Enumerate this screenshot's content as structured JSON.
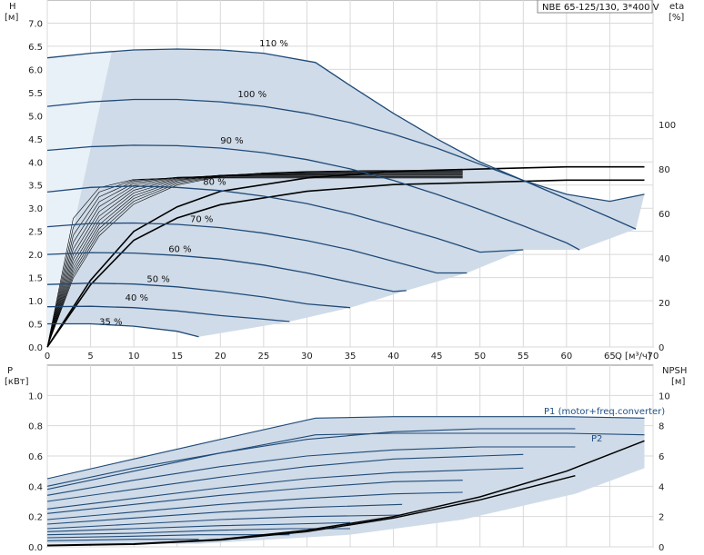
{
  "chart_data": [
    {
      "type": "line",
      "panel": "head",
      "title": "NBE 65-125/130, 3*400 V",
      "ylabel": "H",
      "yunit": "[м]",
      "y2label": "eta",
      "y2unit": "[%]",
      "xlabel": "Q [м³/ч]",
      "xlim": [
        0,
        70
      ],
      "ylim": [
        0,
        7.5
      ],
      "y2lim": [
        0,
        156
      ],
      "xticks": [
        "0",
        "5",
        "10",
        "15",
        "20",
        "25",
        "30",
        "35",
        "40",
        "45",
        "50",
        "55",
        "60",
        "65",
        "70"
      ],
      "yticks": [
        "0.0",
        "0.5",
        "1.0",
        "1.5",
        "2.0",
        "2.5",
        "3.0",
        "3.5",
        "4.0",
        "4.5",
        "5.0",
        "5.5",
        "6.0",
        "6.5",
        "7.0"
      ],
      "y2ticks": [
        "0",
        "20",
        "40",
        "60",
        "80",
        "100"
      ],
      "grid": true,
      "series": [
        {
          "name": "110 %",
          "label_at": [
            24.5,
            6.5
          ],
          "x": [
            0,
            5,
            10,
            15,
            20,
            25,
            31,
            35,
            40,
            45,
            50,
            55,
            60,
            65,
            69
          ],
          "y": [
            6.25,
            6.35,
            6.42,
            6.44,
            6.42,
            6.35,
            6.15,
            5.65,
            5.05,
            4.5,
            4.0,
            3.6,
            3.3,
            3.15,
            3.3
          ]
        },
        {
          "name": "100 %",
          "label_at": [
            22,
            5.4
          ],
          "x": [
            0,
            5,
            10,
            15,
            20,
            25,
            30,
            35,
            40,
            45,
            50,
            55,
            60,
            65,
            68
          ],
          "y": [
            5.2,
            5.3,
            5.35,
            5.35,
            5.3,
            5.2,
            5.05,
            4.85,
            4.6,
            4.3,
            3.95,
            3.6,
            3.2,
            2.8,
            2.55
          ]
        },
        {
          "name": "90 %",
          "label_at": [
            20,
            4.4
          ],
          "x": [
            0,
            5,
            10,
            15,
            20,
            25,
            30,
            35,
            40,
            45,
            50,
            55,
            60,
            61.5
          ],
          "y": [
            4.25,
            4.33,
            4.36,
            4.35,
            4.3,
            4.2,
            4.05,
            3.85,
            3.6,
            3.3,
            2.97,
            2.62,
            2.25,
            2.1
          ]
        },
        {
          "name": "80 %",
          "label_at": [
            18,
            3.5
          ],
          "x": [
            0,
            5,
            10,
            15,
            20,
            25,
            30,
            35,
            40,
            45,
            50,
            55
          ],
          "y": [
            3.35,
            3.45,
            3.48,
            3.45,
            3.38,
            3.26,
            3.1,
            2.88,
            2.62,
            2.35,
            2.05,
            2.1
          ]
        },
        {
          "name": "70 %",
          "label_at": [
            16.5,
            2.7
          ],
          "x": [
            0,
            5,
            10,
            15,
            20,
            25,
            30,
            35,
            40,
            45,
            48.5
          ],
          "y": [
            2.6,
            2.67,
            2.68,
            2.65,
            2.58,
            2.46,
            2.3,
            2.1,
            1.85,
            1.6,
            1.6
          ]
        },
        {
          "name": "60 %",
          "label_at": [
            14,
            2.05
          ],
          "x": [
            0,
            5,
            10,
            15,
            20,
            25,
            30,
            35,
            40,
            41.5
          ],
          "y": [
            2.0,
            2.04,
            2.03,
            1.98,
            1.9,
            1.77,
            1.6,
            1.4,
            1.2,
            1.22
          ]
        },
        {
          "name": "50 %",
          "label_at": [
            11.5,
            1.4
          ],
          "x": [
            0,
            5,
            10,
            15,
            20,
            25,
            30,
            35
          ],
          "y": [
            1.35,
            1.38,
            1.36,
            1.3,
            1.2,
            1.08,
            0.93,
            0.85
          ]
        },
        {
          "name": "40 %",
          "label_at": [
            9,
            1.0
          ],
          "x": [
            0,
            5,
            10,
            15,
            20,
            25,
            28
          ],
          "y": [
            0.87,
            0.88,
            0.85,
            0.78,
            0.68,
            0.6,
            0.55
          ]
        },
        {
          "name": "35 %",
          "label_at": [
            6,
            0.48
          ],
          "x": [
            0,
            5,
            10,
            15,
            17.5
          ],
          "y": [
            0.5,
            0.5,
            0.45,
            0.34,
            0.22
          ]
        }
      ],
      "curve_labels": [
        "110 %",
        "100 %",
        "90 %",
        "80 %",
        "70 %",
        "60 %",
        "50 %",
        "40 %",
        "35 %"
      ],
      "efficiency_series": [
        {
          "x": [
            0,
            5,
            10,
            15,
            20,
            30,
            40,
            50,
            60,
            69
          ],
          "y": [
            0,
            30,
            52,
            63,
            70,
            76,
            79,
            80,
            81,
            81
          ]
        },
        {
          "x": [
            0,
            5,
            10,
            15,
            20,
            30,
            40,
            50,
            60,
            69
          ],
          "y": [
            0,
            28,
            48,
            58,
            64,
            70,
            73,
            74,
            75,
            75
          ]
        }
      ]
    },
    {
      "type": "line",
      "panel": "power",
      "ylabel": "P",
      "yunit": "[кВт]",
      "y2label": "NPSH",
      "y2unit": "[м]",
      "xlim": [
        0,
        70
      ],
      "ylim": [
        0,
        1.2
      ],
      "y2lim": [
        0,
        12
      ],
      "yticks": [
        "0.0",
        "0.2",
        "0.4",
        "0.6",
        "0.8",
        "1.0"
      ],
      "y2ticks": [
        "0",
        "2",
        "4",
        "6",
        "8",
        "10"
      ],
      "legend": [
        "P1 (motor+freq.converter)",
        "P2"
      ],
      "series": [
        {
          "name": "P1 (motor+freq.converter)",
          "x": [
            0,
            10,
            20,
            31,
            40,
            50,
            60,
            69
          ],
          "y": [
            0.45,
            0.58,
            0.71,
            0.85,
            0.86,
            0.86,
            0.86,
            0.85
          ]
        },
        {
          "name": "P2",
          "x": [
            0,
            10,
            20,
            31,
            40,
            50,
            60,
            69
          ],
          "y": [
            0.38,
            0.5,
            0.62,
            0.74,
            0.75,
            0.75,
            0.75,
            0.74
          ]
        },
        {
          "x": [
            0,
            10,
            20,
            30,
            40,
            50,
            61
          ],
          "y": [
            0.4,
            0.52,
            0.62,
            0.71,
            0.76,
            0.78,
            0.78
          ]
        },
        {
          "x": [
            0,
            10,
            20,
            30,
            40,
            50,
            61
          ],
          "y": [
            0.34,
            0.44,
            0.53,
            0.6,
            0.64,
            0.66,
            0.66
          ]
        },
        {
          "x": [
            0,
            10,
            20,
            30,
            40,
            50,
            55
          ],
          "y": [
            0.3,
            0.38,
            0.46,
            0.53,
            0.58,
            0.6,
            0.61
          ]
        },
        {
          "x": [
            0,
            10,
            20,
            30,
            40,
            50,
            55
          ],
          "y": [
            0.25,
            0.32,
            0.39,
            0.45,
            0.49,
            0.51,
            0.52
          ]
        },
        {
          "x": [
            0,
            10,
            20,
            30,
            40,
            48
          ],
          "y": [
            0.22,
            0.28,
            0.34,
            0.39,
            0.43,
            0.44
          ]
        },
        {
          "x": [
            0,
            10,
            20,
            30,
            40,
            48
          ],
          "y": [
            0.18,
            0.23,
            0.28,
            0.32,
            0.35,
            0.36
          ]
        },
        {
          "x": [
            0,
            10,
            20,
            30,
            41
          ],
          "y": [
            0.15,
            0.19,
            0.23,
            0.26,
            0.28
          ]
        },
        {
          "x": [
            0,
            10,
            20,
            30,
            41
          ],
          "y": [
            0.12,
            0.15,
            0.18,
            0.2,
            0.21
          ]
        },
        {
          "x": [
            0,
            10,
            20,
            28,
            35
          ],
          "y": [
            0.1,
            0.12,
            0.14,
            0.15,
            0.16
          ]
        },
        {
          "x": [
            0,
            10,
            20,
            28,
            35
          ],
          "y": [
            0.08,
            0.09,
            0.11,
            0.12,
            0.12
          ]
        },
        {
          "x": [
            0,
            10,
            17.5,
            28
          ],
          "y": [
            0.06,
            0.07,
            0.08,
            0.08
          ]
        },
        {
          "x": [
            0,
            10,
            17.5
          ],
          "y": [
            0.04,
            0.05,
            0.05
          ]
        }
      ],
      "npsh_series": [
        {
          "x": [
            0,
            10,
            20,
            30,
            40,
            50,
            60,
            69
          ],
          "y": [
            0.1,
            0.2,
            0.5,
            1.1,
            2.0,
            3.3,
            5.0,
            7.0
          ]
        },
        {
          "x": [
            0,
            10,
            20,
            30,
            40,
            50,
            61
          ],
          "y": [
            0.08,
            0.17,
            0.45,
            1.0,
            1.9,
            3.1,
            4.7
          ]
        }
      ]
    }
  ]
}
